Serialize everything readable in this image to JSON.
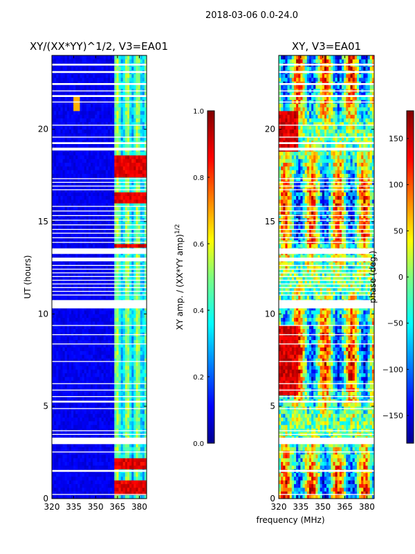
{
  "suptitle": "2018-03-06 0.0-24.0",
  "shared_xlabel": "frequency (MHz)",
  "colorbar_left": {
    "label": "XY amp. / (XX*YY amp)^1/2",
    "range": [
      0.0,
      1.0
    ],
    "ticks": [
      "0.0",
      "0.2",
      "0.4",
      "0.6",
      "0.8",
      "1.0"
    ],
    "tick_values": [
      0.0,
      0.2,
      0.4,
      0.6,
      0.8,
      1.0
    ]
  },
  "colorbar_right": {
    "label": "phase (deg.)",
    "range": [
      -180,
      180
    ],
    "ticks": [
      "−150",
      "−100",
      "−50",
      "0",
      "50",
      "100",
      "150"
    ],
    "tick_values": [
      -150,
      -100,
      -50,
      0,
      50,
      100,
      150
    ]
  },
  "colors": {
    "low": "#00008f",
    "high": "#800000",
    "gap": "#ffffff"
  },
  "chart_data": [
    {
      "type": "heatmap",
      "title": "XY/(XX*YY)^1/2, V3=EA01",
      "xlabel": "",
      "ylabel": "UT (hours)",
      "xlim": [
        320,
        385
      ],
      "ylim": [
        0,
        24
      ],
      "xticks": [
        "320",
        "335",
        "350",
        "365",
        "380"
      ],
      "xtick_values": [
        320,
        335,
        350,
        365,
        380
      ],
      "yticks": [
        "0",
        "5",
        "10",
        "15",
        "20"
      ],
      "ytick_values": [
        0,
        5,
        10,
        15,
        20
      ],
      "value_range": [
        0,
        1
      ],
      "description_values": {
        "baseline_level": 0.08,
        "band_365_385_level": 0.35,
        "bright_band_level": 0.85,
        "bright_time_ranges_hours": [
          [
            0.3,
            1.0
          ],
          [
            1.6,
            2.3
          ],
          [
            13.6,
            13.8
          ],
          [
            16.0,
            16.6
          ],
          [
            17.4,
            18.6
          ]
        ],
        "spike_time_hours": 21.3,
        "spike_freq_mhz": 337
      }
    },
    {
      "type": "heatmap",
      "title": "XY, V3=EA01",
      "xlabel": "",
      "ylabel": "",
      "xlim": [
        320,
        385
      ],
      "ylim": [
        0,
        24
      ],
      "xticks": [
        "320",
        "335",
        "350",
        "365",
        "380"
      ],
      "xtick_values": [
        320,
        335,
        350,
        365,
        380
      ],
      "yticks": [
        "0",
        "5",
        "10",
        "15",
        "20"
      ],
      "ytick_values": [
        0,
        5,
        10,
        15,
        20
      ],
      "value_range": [
        -180,
        180
      ],
      "description_values": {
        "typical_phase_deg": 0,
        "phase_spread_deg": 180
      }
    }
  ],
  "data_gaps_hours": [
    [
      0.2,
      0.25
    ],
    [
      1.45,
      1.55
    ],
    [
      2.5,
      2.55
    ],
    [
      2.95,
      3.3
    ],
    [
      3.45,
      3.5
    ],
    [
      3.65,
      3.7
    ],
    [
      4.85,
      4.9
    ],
    [
      5.2,
      5.3
    ],
    [
      5.5,
      5.55
    ],
    [
      5.85,
      5.9
    ],
    [
      6.2,
      6.25
    ],
    [
      7.4,
      7.45
    ],
    [
      8.35,
      8.4
    ],
    [
      8.85,
      8.9
    ],
    [
      9.35,
      9.4
    ],
    [
      10.3,
      10.75
    ],
    [
      11.0,
      11.05
    ],
    [
      11.2,
      11.25
    ],
    [
      11.4,
      11.45
    ],
    [
      11.6,
      11.65
    ],
    [
      11.8,
      11.85
    ],
    [
      12.0,
      12.05
    ],
    [
      12.2,
      12.25
    ],
    [
      12.4,
      12.45
    ],
    [
      12.6,
      12.65
    ],
    [
      12.85,
      13.05
    ],
    [
      13.25,
      13.55
    ],
    [
      13.85,
      13.9
    ],
    [
      14.1,
      14.15
    ],
    [
      14.35,
      14.4
    ],
    [
      14.55,
      14.6
    ],
    [
      14.8,
      14.85
    ],
    [
      15.05,
      15.1
    ],
    [
      15.3,
      15.35
    ],
    [
      15.55,
      15.6
    ],
    [
      15.8,
      15.85
    ],
    [
      16.7,
      16.75
    ],
    [
      16.9,
      16.95
    ],
    [
      17.1,
      17.15
    ],
    [
      17.3,
      17.35
    ],
    [
      18.85,
      19.0
    ],
    [
      19.2,
      19.3
    ],
    [
      19.55,
      19.6
    ],
    [
      20.2,
      20.25
    ],
    [
      21.45,
      21.5
    ],
    [
      21.75,
      21.85
    ],
    [
      22.05,
      22.1
    ],
    [
      22.4,
      22.5
    ],
    [
      23.05,
      23.15
    ],
    [
      23.45,
      23.55
    ]
  ]
}
